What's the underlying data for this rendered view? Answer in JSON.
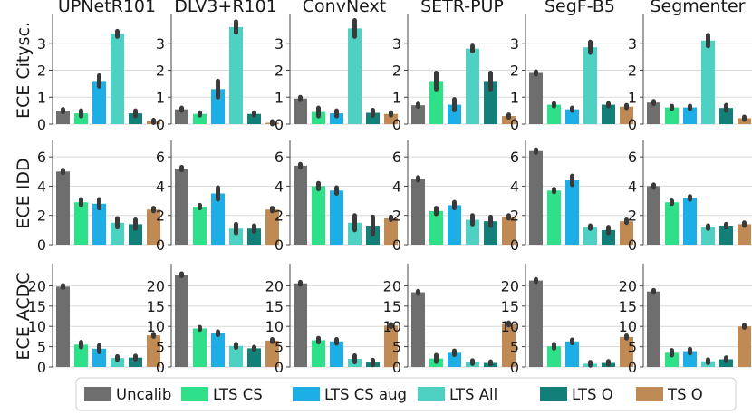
{
  "chart_data": {
    "type": "bar",
    "columns": [
      "UPNetR101",
      "DLV3+R101",
      "ConvNext",
      "SETR-PUP",
      "SegF-B5",
      "Segmenter"
    ],
    "rows": [
      {
        "label": "ECE Citysc.",
        "ylim": [
          0,
          4
        ],
        "yticks": [
          0,
          1,
          2,
          3
        ]
      },
      {
        "label": "ECE IDD",
        "ylim": [
          0,
          7
        ],
        "yticks": [
          0,
          2,
          4,
          6
        ]
      },
      {
        "label": "ECE ACDC",
        "ylim": [
          0,
          25
        ],
        "yticks": [
          0,
          5,
          10,
          15,
          20
        ]
      }
    ],
    "legend": [
      {
        "name": "Uncalib",
        "color": "#6e6e6e"
      },
      {
        "name": "LTS CS",
        "color": "#2ee08a"
      },
      {
        "name": "LTS CS aug",
        "color": "#1eaee6"
      },
      {
        "name": "LTS All",
        "color": "#4ed1c2"
      },
      {
        "name": "LTS O",
        "color": "#128078"
      },
      {
        "name": "TS O",
        "color": "#c08a55"
      }
    ],
    "values": [
      [
        [
          0.5,
          0.4,
          1.6,
          3.35,
          0.4,
          0.1
        ],
        [
          0.55,
          0.38,
          1.3,
          3.6,
          0.38,
          0.05
        ],
        [
          0.95,
          0.45,
          0.4,
          3.55,
          0.42,
          0.38
        ],
        [
          0.7,
          1.6,
          0.72,
          2.8,
          1.6,
          0.3
        ],
        [
          1.9,
          0.72,
          0.55,
          2.85,
          0.72,
          0.65
        ],
        [
          0.8,
          0.62,
          0.62,
          3.1,
          0.6,
          0.22
        ]
      ],
      [
        [
          5.0,
          2.9,
          2.8,
          1.5,
          1.4,
          2.4
        ],
        [
          5.2,
          2.6,
          3.5,
          1.1,
          1.1,
          2.4
        ],
        [
          5.4,
          4.0,
          3.7,
          1.5,
          1.3,
          1.8
        ],
        [
          4.5,
          2.3,
          2.7,
          1.7,
          1.6,
          1.9
        ],
        [
          6.4,
          3.7,
          4.4,
          1.2,
          1.0,
          1.6
        ],
        [
          4.0,
          2.9,
          3.2,
          1.2,
          1.3,
          1.4
        ]
      ],
      [
        [
          19.8,
          5.5,
          4.5,
          2.2,
          2.3,
          7.8
        ],
        [
          22.7,
          9.5,
          8.3,
          5.2,
          4.6,
          6.5
        ],
        [
          20.6,
          6.6,
          6.3,
          2.0,
          1.1,
          10.2
        ],
        [
          18.4,
          2.1,
          3.5,
          1.2,
          1.0,
          10.6
        ],
        [
          21.3,
          5.1,
          6.3,
          0.8,
          1.0,
          7.4
        ],
        [
          18.6,
          3.5,
          3.9,
          1.4,
          1.9,
          10.0
        ]
      ]
    ],
    "errors": [
      [
        [
          0.05,
          0.1,
          0.2,
          0.1,
          0.1,
          0.05
        ],
        [
          0.05,
          0.05,
          0.3,
          0.2,
          0.05,
          0.05
        ],
        [
          0.05,
          0.15,
          0.1,
          0.3,
          0.1,
          0.05
        ],
        [
          0.05,
          0.3,
          0.2,
          0.1,
          0.3,
          0.05
        ],
        [
          0.05,
          0.05,
          0.05,
          0.2,
          0.05,
          0.05
        ],
        [
          0.05,
          0.05,
          0.05,
          0.2,
          0.1,
          0.05
        ]
      ],
      [
        [
          0.1,
          0.2,
          0.3,
          0.3,
          0.3,
          0.1
        ],
        [
          0.1,
          0.1,
          0.4,
          0.3,
          0.2,
          0.1
        ],
        [
          0.1,
          0.2,
          0.2,
          0.5,
          0.6,
          0.1
        ],
        [
          0.1,
          0.2,
          0.2,
          0.3,
          0.3,
          0.1
        ],
        [
          0.1,
          0.1,
          0.3,
          0.1,
          0.2,
          0.1
        ],
        [
          0.1,
          0.1,
          0.1,
          0.1,
          0.1,
          0.1
        ]
      ],
      [
        [
          0.3,
          0.6,
          0.8,
          0.4,
          0.4,
          0.3
        ],
        [
          0.3,
          0.3,
          0.4,
          0.4,
          0.3,
          0.3
        ],
        [
          0.3,
          0.5,
          0.5,
          0.8,
          0.6,
          0.3
        ],
        [
          0.3,
          0.8,
          0.5,
          0.4,
          0.3,
          0.3
        ],
        [
          0.3,
          0.5,
          0.4,
          0.4,
          0.4,
          0.3
        ],
        [
          0.3,
          0.6,
          0.5,
          0.4,
          0.4,
          0.3
        ]
      ]
    ]
  }
}
